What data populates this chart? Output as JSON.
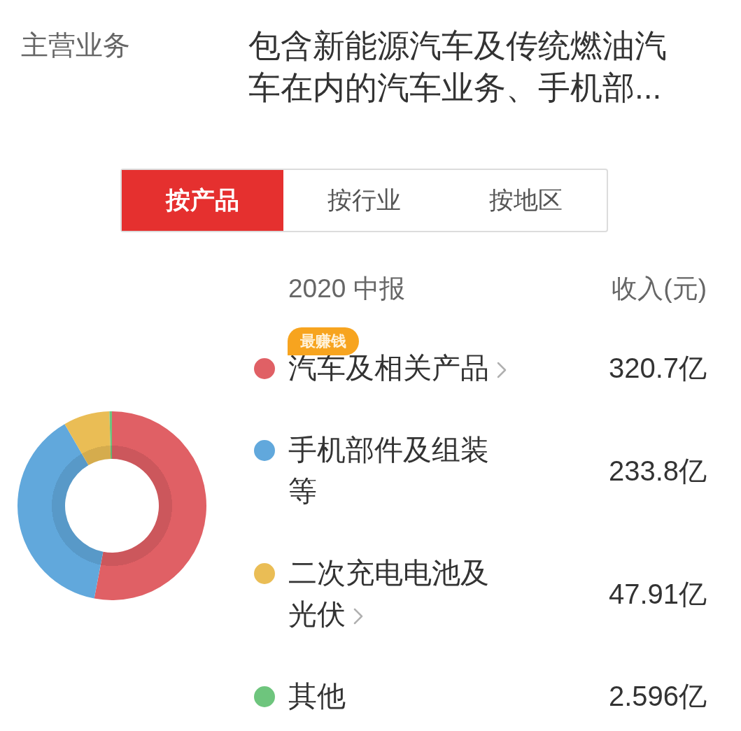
{
  "chart_data": {
    "type": "donut",
    "title": "主营业务",
    "subtitle": "包含新能源汽车及传统燃油汽车在内的汽车业务、手机部...",
    "categories": [
      "汽车及相关产品",
      "手机部件及组装等",
      "二次充电电池及光伏",
      "其他"
    ],
    "values": [
      320.7,
      233.8,
      47.91,
      2.596
    ],
    "colors": [
      "#e06065",
      "#61a8dc",
      "#eabd55",
      "#6ec57d"
    ],
    "value_labels": [
      "320.7亿",
      "233.8亿",
      "47.91亿",
      "2.596亿"
    ],
    "legend": "right",
    "annotations": [
      "按产品",
      "按行业",
      "按地区",
      "2020 中报",
      "收入(元)",
      "最赚钱"
    ]
  }
}
